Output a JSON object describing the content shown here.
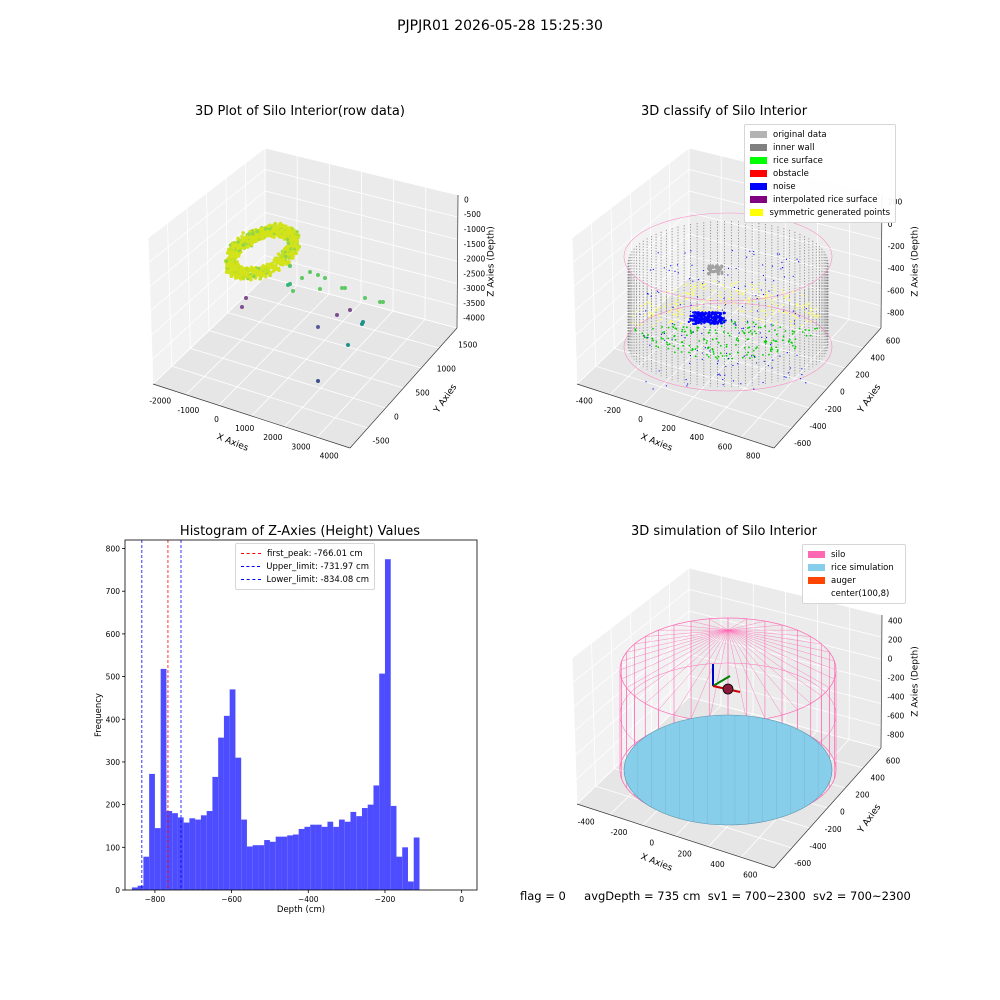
{
  "figure_title": "PJPJR01 2026-05-28 15:25:30",
  "status": {
    "flag": "flag = 0",
    "avg_depth": "avgDepth = 735 cm",
    "sv1": "sv1 = 700~2300",
    "sv2": "sv2 = 700~2300"
  },
  "colors": {
    "original_data": "#b3b3b3",
    "inner_wall": "#808080",
    "rice_surface": "#00ff00",
    "obstacle": "#ff0000",
    "noise": "#0000ff",
    "interpolated_rice_surface": "#800080",
    "symmetric_generated_points": "#ffff00",
    "silo": "#ff69b4",
    "rice_simulation": "#87ceeb",
    "auger": "#ff4500",
    "histogram_bar": "#4d4dff"
  },
  "chart_data": [
    {
      "type": "scatter",
      "title": "3D Plot of Silo Interior(row data)",
      "projection": "3d",
      "xlabel": "X Axies",
      "ylabel": "Y Axies",
      "zlabel": "Z Axies (Depth)",
      "x_ticks": [
        "-2000",
        "-1000",
        "0",
        "1000",
        "2000",
        "3000",
        "4000"
      ],
      "y_ticks": [
        "-500",
        "0",
        "500",
        "1000",
        "1500"
      ],
      "z_ticks": [
        "0",
        "-500",
        "-1000",
        "-1500",
        "-2000",
        "-2500",
        "-3000",
        "-3500",
        "-4000"
      ],
      "xlim": [
        -2500,
        4500
      ],
      "ylim": [
        -700,
        1700
      ],
      "zlim": [
        -4200,
        100
      ],
      "note_colormap": "viridis by depth"
    },
    {
      "type": "scatter",
      "title": "3D classify of Silo Interior",
      "projection": "3d",
      "xlabel": "X Axies",
      "ylabel": "Y Axies",
      "zlabel": "Z Axies (Depth)",
      "x_ticks": [
        "-400",
        "-200",
        "0",
        "200",
        "400",
        "600",
        "800"
      ],
      "y_ticks": [
        "-600",
        "-400",
        "-200",
        "0",
        "200",
        "400",
        "600"
      ],
      "z_ticks": [
        "200",
        "0",
        "-200",
        "-400",
        "-600",
        "-800"
      ],
      "z_hidden_top_tick": "400",
      "legend": [
        {
          "label": "original data",
          "color": "#b3b3b3"
        },
        {
          "label": "inner wall",
          "color": "#808080"
        },
        {
          "label": "rice surface",
          "color": "#00ff00"
        },
        {
          "label": "obstacle",
          "color": "#ff0000"
        },
        {
          "label": "noise",
          "color": "#0000ff"
        },
        {
          "label": "interpolated rice surface",
          "color": "#800080"
        },
        {
          "label": "symmetric generated points",
          "color": "#ffff00"
        }
      ],
      "legend_placement": "top-right"
    },
    {
      "type": "bar",
      "title": "Histogram of Z-Axies (Height) Values",
      "xlabel": "Depth (cm)",
      "ylabel": "Frequency",
      "xlim": [
        -878,
        40
      ],
      "ylim": [
        0,
        820
      ],
      "x_ticks": [
        -800,
        -600,
        -400,
        -200,
        0
      ],
      "y_ticks": [
        0,
        100,
        200,
        300,
        400,
        500,
        600,
        700,
        800
      ],
      "bin_start": -860,
      "bin_width": 15,
      "values": [
        6,
        10,
        78,
        272,
        145,
        518,
        185,
        180,
        170,
        158,
        168,
        165,
        175,
        185,
        265,
        357,
        408,
        470,
        310,
        165,
        102,
        105,
        105,
        117,
        113,
        125,
        125,
        128,
        130,
        143,
        148,
        153,
        153,
        148,
        160,
        148,
        165,
        160,
        183,
        173,
        192,
        200,
        245,
        507,
        775,
        197,
        78,
        100,
        20,
        123
      ],
      "reference_lines": [
        {
          "label": "first_peak: -766.01 cm",
          "x": -766.01,
          "color": "#ff0000"
        },
        {
          "label": "Upper_limit: -731.97 cm",
          "x": -731.97,
          "color": "#0000ff"
        },
        {
          "label": "Lower_limit: -834.08 cm",
          "x": -834.08,
          "color": "#0000ff"
        }
      ],
      "legend_placement": "top-center"
    },
    {
      "type": "scatter",
      "title": "3D simulation of Silo Interior",
      "projection": "3d",
      "xlabel": "X Axies",
      "ylabel": "Y Axies",
      "zlabel": "Z Axies (Depth)",
      "x_ticks": [
        "-400",
        "-200",
        "0",
        "200",
        "400",
        "600"
      ],
      "y_ticks": [
        "-600",
        "-400",
        "-200",
        "0",
        "200",
        "400",
        "600"
      ],
      "z_ticks": [
        "400",
        "200",
        "0",
        "-200",
        "-400",
        "-600",
        "-800"
      ],
      "legend": [
        {
          "label": "silo",
          "color": "#ff69b4"
        },
        {
          "label": "rice simulation",
          "color": "#87ceeb"
        },
        {
          "label": "auger",
          "color": "#ff4500"
        },
        {
          "label": "center(100,8)",
          "color": "#ffffff"
        }
      ],
      "legend_placement": "top-right"
    }
  ]
}
